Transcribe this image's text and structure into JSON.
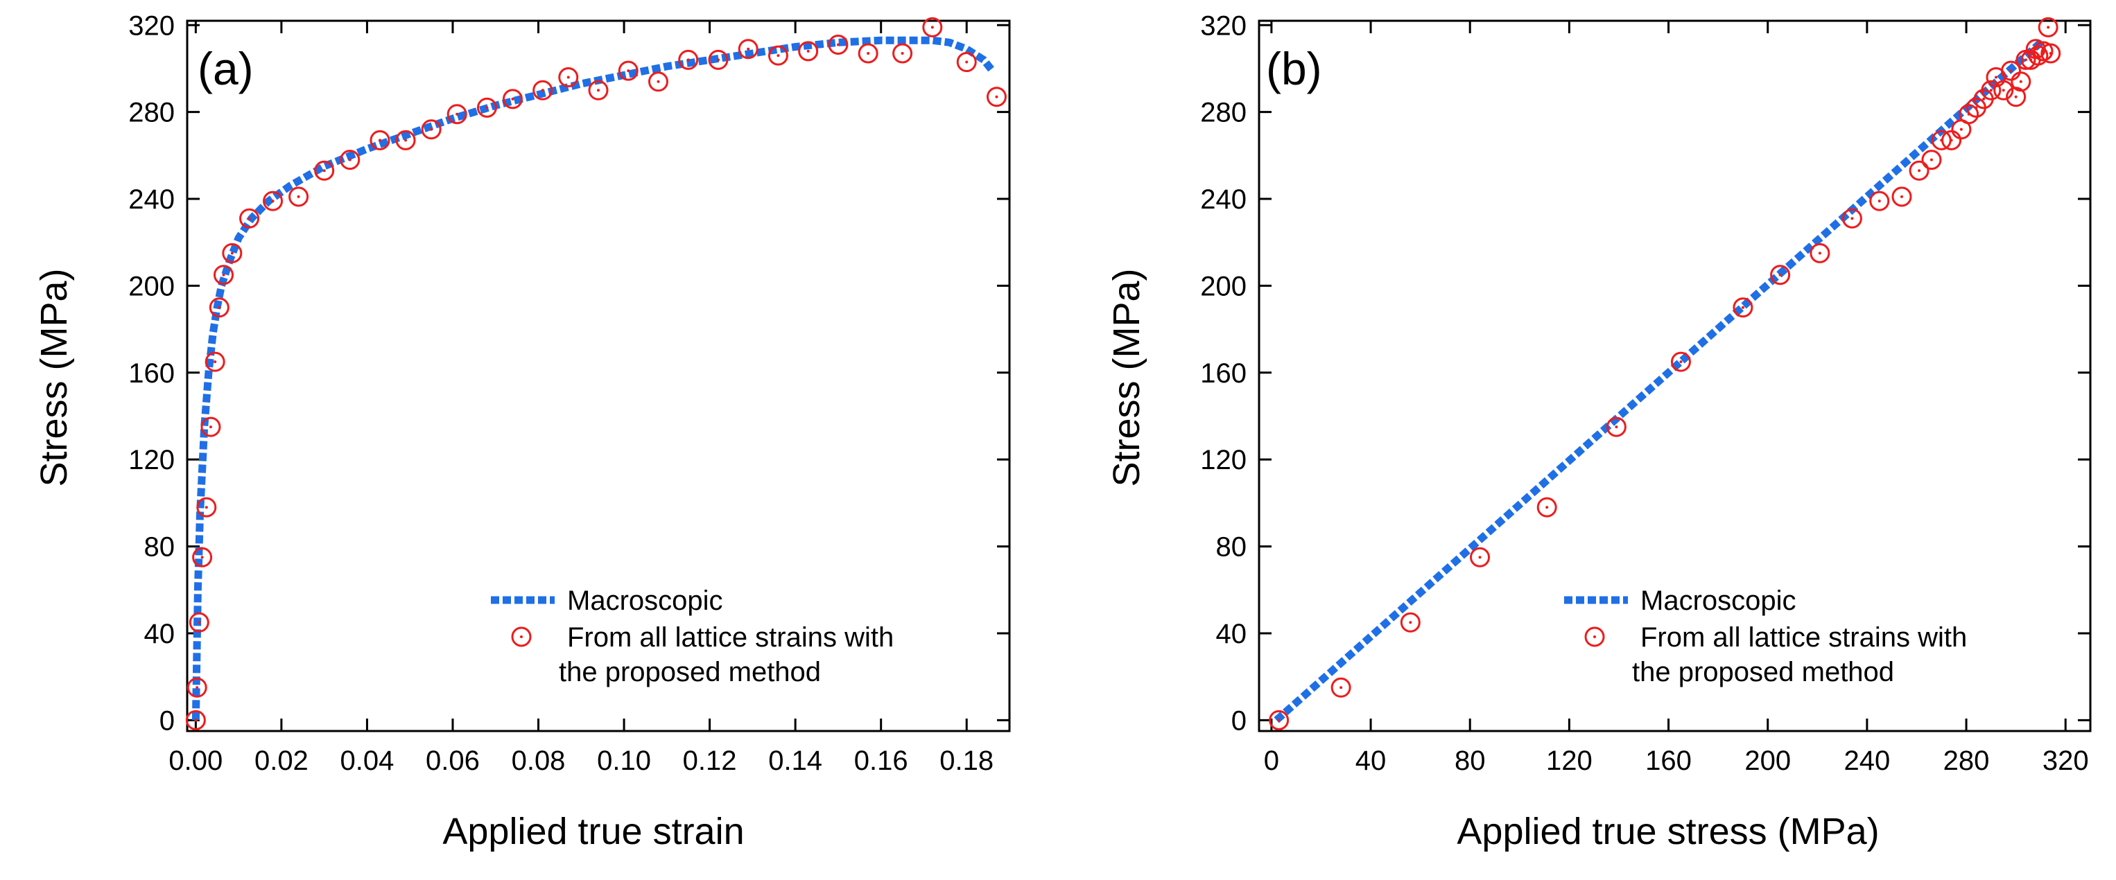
{
  "colors": {
    "line": "#1f6fe6",
    "marker": "#ee1c1c",
    "axis": "#000000"
  },
  "chart_data": [
    {
      "type": "scatter",
      "panel_label": "(a)",
      "xlabel": "Applied true strain",
      "ylabel": "Stress (MPa)",
      "xlim": [
        -0.002,
        0.19
      ],
      "ylim": [
        -5,
        322
      ],
      "xticks": [
        0.0,
        0.02,
        0.04,
        0.06,
        0.08,
        0.1,
        0.12,
        0.14,
        0.16,
        0.18
      ],
      "xtick_labels": [
        "0.00",
        "0.02",
        "0.04",
        "0.06",
        "0.08",
        "0.10",
        "0.12",
        "0.14",
        "0.16",
        "0.18"
      ],
      "yticks": [
        0,
        40,
        80,
        120,
        160,
        200,
        240,
        280,
        320
      ],
      "ytick_labels": [
        "0",
        "40",
        "80",
        "120",
        "160",
        "200",
        "240",
        "280",
        "320"
      ],
      "legend": {
        "placement": "bottom-right",
        "line_label": "Macroscopic",
        "marker_label_line1": "From all lattice strains with",
        "marker_label_line2": "the proposed method"
      },
      "series": [
        {
          "name": "Macroscopic",
          "style": "dashed-line",
          "x": [
            0.0,
            0.0005,
            0.001,
            0.002,
            0.003,
            0.004,
            0.005,
            0.006,
            0.008,
            0.01,
            0.013,
            0.017,
            0.022,
            0.03,
            0.04,
            0.05,
            0.06,
            0.07,
            0.08,
            0.09,
            0.1,
            0.11,
            0.12,
            0.13,
            0.14,
            0.15,
            0.16,
            0.166,
            0.172,
            0.176,
            0.18,
            0.184,
            0.186
          ],
          "y": [
            0,
            60,
            95,
            135,
            160,
            178,
            190,
            200,
            212,
            222,
            231,
            239,
            246,
            255,
            263,
            270,
            277,
            283,
            288,
            293,
            297,
            301,
            304,
            307,
            310,
            312,
            313,
            313,
            313,
            312,
            309,
            304,
            299
          ]
        },
        {
          "name": "From all lattice strains with the proposed method",
          "style": "circle-markers",
          "x": [
            0.0,
            0.0003,
            0.0008,
            0.0015,
            0.0025,
            0.0035,
            0.0045,
            0.0055,
            0.0065,
            0.0085,
            0.0125,
            0.018,
            0.024,
            0.03,
            0.036,
            0.043,
            0.049,
            0.055,
            0.061,
            0.068,
            0.074,
            0.081,
            0.087,
            0.094,
            0.101,
            0.108,
            0.115,
            0.122,
            0.129,
            0.136,
            0.143,
            0.15,
            0.157,
            0.165,
            0.172,
            0.18,
            0.187
          ],
          "y": [
            0,
            15,
            45,
            75,
            98,
            135,
            165,
            190,
            205,
            215,
            231,
            239,
            241,
            253,
            258,
            267,
            267,
            272,
            279,
            282,
            286,
            290,
            296,
            290,
            299,
            294,
            304,
            304,
            309,
            306,
            308,
            311,
            307,
            307,
            319,
            303,
            287
          ]
        }
      ]
    },
    {
      "type": "scatter",
      "panel_label": "(b)",
      "xlabel": "Applied true stress (MPa)",
      "ylabel": "Stress (MPa)",
      "xlim": [
        -5,
        330
      ],
      "ylim": [
        -5,
        322
      ],
      "xticks": [
        0,
        40,
        80,
        120,
        160,
        200,
        240,
        280,
        320
      ],
      "xtick_labels": [
        "0",
        "40",
        "80",
        "120",
        "160",
        "200",
        "240",
        "280",
        "320"
      ],
      "yticks": [
        0,
        40,
        80,
        120,
        160,
        200,
        240,
        280,
        320
      ],
      "ytick_labels": [
        "0",
        "40",
        "80",
        "120",
        "160",
        "200",
        "240",
        "280",
        "320"
      ],
      "legend": {
        "placement": "bottom-right",
        "line_label": "Macroscopic",
        "marker_label_line1": "From all lattice strains with",
        "marker_label_line2": "the proposed method"
      },
      "series": [
        {
          "name": "Macroscopic",
          "style": "dashed-line",
          "x": [
            2,
            311
          ],
          "y": [
            0,
            313
          ]
        },
        {
          "name": "From all lattice strains with the proposed method",
          "style": "circle-markers",
          "x": [
            3,
            28,
            56,
            84,
            111,
            139,
            165,
            190,
            205,
            221,
            234,
            245,
            254,
            261,
            266,
            270,
            274,
            278,
            281,
            284,
            287,
            290,
            292,
            295,
            298,
            300,
            302,
            304,
            306,
            308,
            309,
            311,
            313,
            314
          ],
          "y": [
            0,
            15,
            45,
            75,
            98,
            135,
            165,
            190,
            205,
            215,
            231,
            239,
            241,
            253,
            258,
            267,
            267,
            272,
            279,
            282,
            286,
            290,
            296,
            290,
            299,
            287,
            294,
            304,
            304,
            309,
            306,
            308,
            319,
            307
          ]
        }
      ]
    }
  ]
}
